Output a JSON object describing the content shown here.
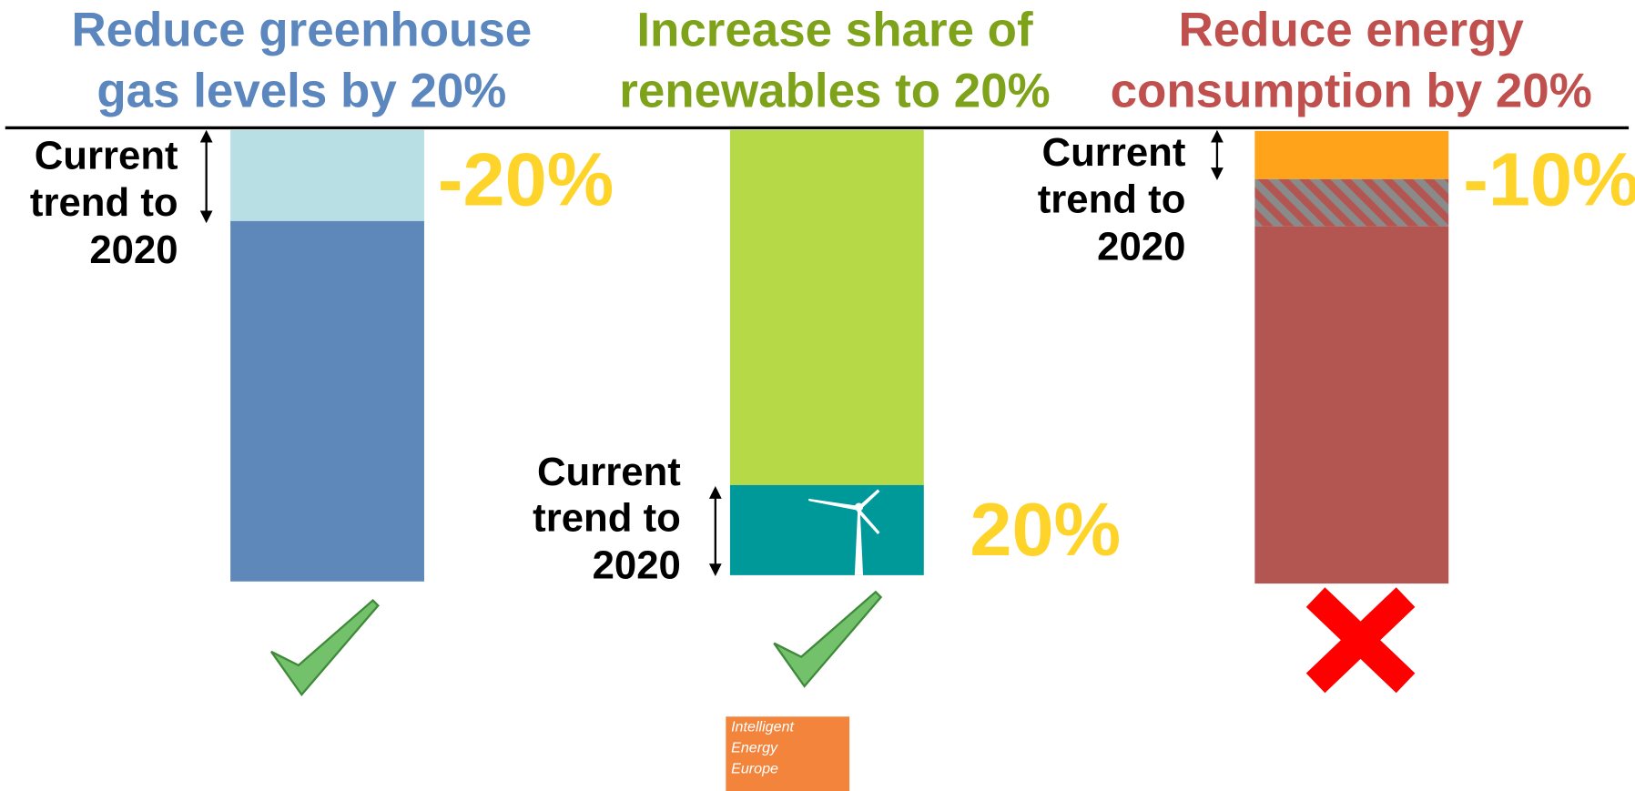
{
  "panels": [
    {
      "title": [
        "Reduce greenhouse",
        "gas levels by 20%"
      ],
      "trend_label": [
        "Current",
        "trend to",
        "2020"
      ],
      "change": "-20%"
    },
    {
      "title": [
        "Increase share of",
        "renewables to 20%"
      ],
      "trend_label": [
        "Current",
        "trend to",
        "2020"
      ],
      "change": "20%"
    },
    {
      "title": [
        "Reduce energy",
        "consumption by 20%"
      ],
      "trend_label": [
        "Current",
        "trend to",
        "2020"
      ],
      "change": "-10%"
    }
  ],
  "logo": [
    "Intelligent",
    "Energy",
    "Europe"
  ]
}
